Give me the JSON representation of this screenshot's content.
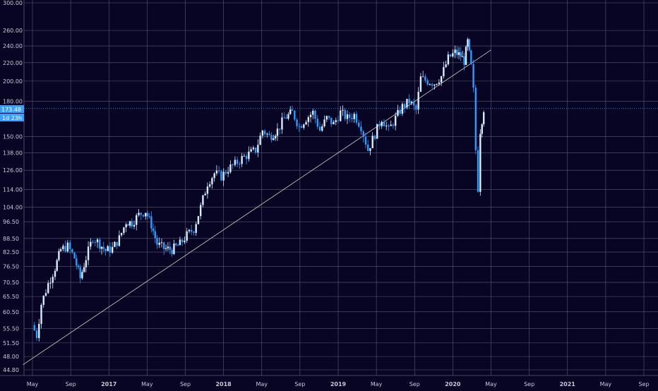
{
  "colors": {
    "background": "#070523",
    "grid": "#5a5a70",
    "axis_text": "#c8c8d4",
    "candle_up": "#d9ecff",
    "candle_down": "#2e9bff",
    "trendline": "#c8d0c0",
    "price_tag": "#3aa0ff",
    "price_line": "#3aa0ff"
  },
  "price_axis": {
    "scale": "log",
    "ticks": [
      "300.00",
      "260.00",
      "240.00",
      "220.00",
      "200.00",
      "180.00",
      "150.00",
      "138.00",
      "126.00",
      "114.00",
      "104.00",
      "96.50",
      "88.50",
      "82.50",
      "76.50",
      "70.50",
      "65.50",
      "60.50",
      "55.50",
      "51.50",
      "48.00",
      "44.80"
    ]
  },
  "time_axis": {
    "ticks": [
      "May",
      "Sep",
      "2017",
      "May",
      "Sep",
      "2018",
      "May",
      "Sep",
      "2019",
      "May",
      "Sep",
      "2020",
      "May",
      "Sep",
      "2021",
      "May",
      "Sep"
    ]
  },
  "last_price": {
    "value": 173.48,
    "label": "173.48",
    "countdown": "1d 23h"
  },
  "chart_data": {
    "type": "candlestick",
    "title": "",
    "y_scale": "log",
    "x_range": [
      "2016-04",
      "2021-09"
    ],
    "ylim": [
      44.8,
      300
    ],
    "grid": true,
    "trendline": {
      "from": [
        "2016-04",
        46.0
      ],
      "to": [
        "2020-05",
        235.0
      ]
    },
    "series": [
      {
        "values": [
          [
            2016.33,
            56.5
          ],
          [
            2016.37,
            53.5
          ],
          [
            2016.41,
            63.0
          ],
          [
            2016.47,
            70.0
          ],
          [
            2016.53,
            76.0
          ],
          [
            2016.58,
            83.5
          ],
          [
            2016.64,
            85.0
          ],
          [
            2016.7,
            80.0
          ],
          [
            2016.75,
            72.0
          ],
          [
            2016.8,
            80.0
          ],
          [
            2016.86,
            89.0
          ],
          [
            2016.92,
            86.0
          ],
          [
            2016.97,
            83.0
          ],
          [
            2017.03,
            84.0
          ],
          [
            2017.09,
            88.5
          ],
          [
            2017.15,
            96.5
          ],
          [
            2017.2,
            96.0
          ],
          [
            2017.26,
            100.0
          ],
          [
            2017.32,
            102.0
          ],
          [
            2017.37,
            95.0
          ],
          [
            2017.42,
            86.0
          ],
          [
            2017.48,
            84.0
          ],
          [
            2017.55,
            83.5
          ],
          [
            2017.62,
            86.0
          ],
          [
            2017.68,
            90.0
          ],
          [
            2017.74,
            93.0
          ],
          [
            2017.8,
            104.0
          ],
          [
            2017.86,
            118.0
          ],
          [
            2017.92,
            124.0
          ],
          [
            2017.98,
            122.0
          ],
          [
            2018.04,
            127.0
          ],
          [
            2018.1,
            130.0
          ],
          [
            2018.16,
            134.0
          ],
          [
            2018.22,
            137.0
          ],
          [
            2018.28,
            140.0
          ],
          [
            2018.34,
            155.0
          ],
          [
            2018.4,
            150.0
          ],
          [
            2018.47,
            155.0
          ],
          [
            2018.53,
            165.0
          ],
          [
            2018.6,
            170.0
          ],
          [
            2018.66,
            158.0
          ],
          [
            2018.72,
            165.0
          ],
          [
            2018.78,
            170.0
          ],
          [
            2018.84,
            155.0
          ],
          [
            2018.9,
            165.0
          ],
          [
            2018.96,
            160.0
          ],
          [
            2019.02,
            170.0
          ],
          [
            2019.08,
            165.0
          ],
          [
            2019.14,
            168.0
          ],
          [
            2019.2,
            158.0
          ],
          [
            2019.26,
            140.0
          ],
          [
            2019.32,
            152.0
          ],
          [
            2019.38,
            165.0
          ],
          [
            2019.44,
            155.0
          ],
          [
            2019.5,
            165.0
          ],
          [
            2019.56,
            175.0
          ],
          [
            2019.62,
            180.0
          ],
          [
            2019.68,
            172.0
          ],
          [
            2019.72,
            203.0
          ],
          [
            2019.78,
            200.0
          ],
          [
            2019.84,
            198.0
          ],
          [
            2019.9,
            205.0
          ],
          [
            2019.96,
            225.0
          ],
          [
            2020.02,
            232.0
          ],
          [
            2020.07,
            228.0
          ],
          [
            2020.1,
            222.0
          ],
          [
            2020.13,
            245.0
          ],
          [
            2020.16,
            215.0
          ],
          [
            2020.18,
            190.0
          ],
          [
            2020.2,
            140.0
          ],
          [
            2020.22,
            115.0
          ],
          [
            2020.24,
            155.0
          ],
          [
            2020.27,
            173.48
          ]
        ]
      }
    ]
  }
}
